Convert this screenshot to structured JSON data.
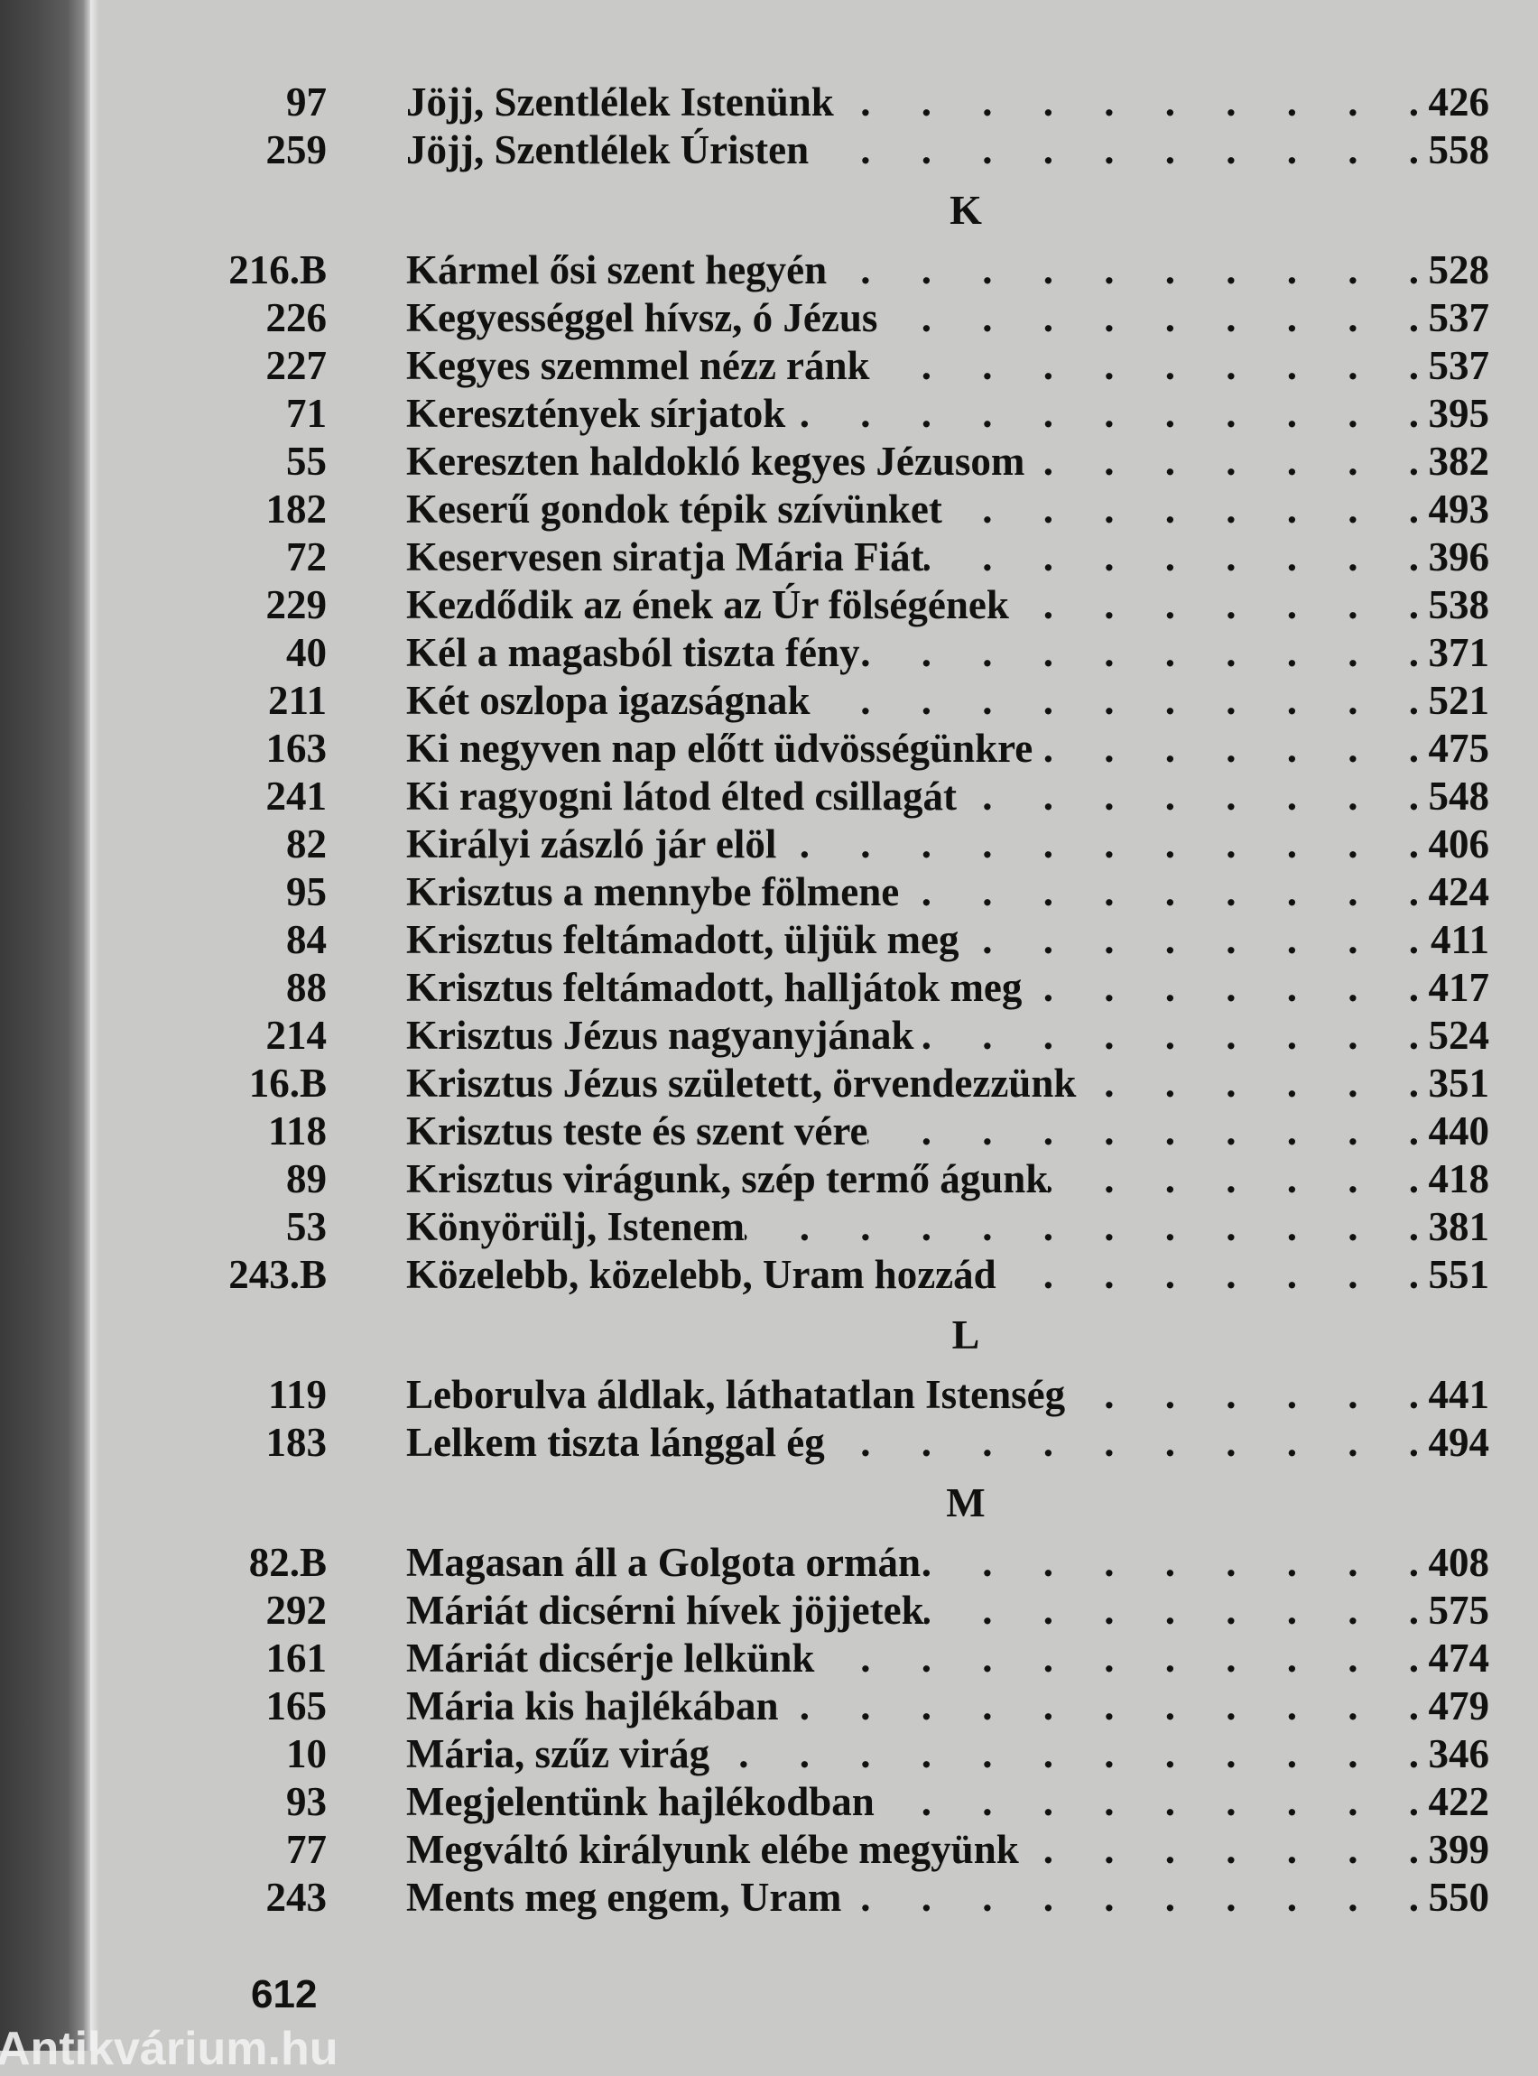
{
  "sections": [
    {
      "letter": "",
      "entries": [
        {
          "num": "97",
          "title": "Jöjj, Szentlélek Istenünk",
          "page": "426"
        },
        {
          "num": "259",
          "title": "Jöjj, Szentlélek Úristen",
          "page": "558"
        }
      ]
    },
    {
      "letter": "K",
      "entries": [
        {
          "num": "216.B",
          "title": "Kármel ősi szent hegyén",
          "page": "528"
        },
        {
          "num": "226",
          "title": "Kegyességgel hívsz, ó Jézus",
          "page": "537"
        },
        {
          "num": "227",
          "title": "Kegyes szemmel nézz ránk",
          "page": "537"
        },
        {
          "num": "71",
          "title": "Keresztények sírjatok",
          "page": "395"
        },
        {
          "num": "55",
          "title": "Kereszten haldokló kegyes Jézusom",
          "page": "382"
        },
        {
          "num": "182",
          "title": "Keserű gondok tépik szívünket",
          "page": "493"
        },
        {
          "num": "72",
          "title": "Keservesen siratja Mária Fiát",
          "page": "396"
        },
        {
          "num": "229",
          "title": "Kezdődik az ének az Úr fölségének",
          "page": "538"
        },
        {
          "num": "40",
          "title": "Kél a magasból tiszta fény",
          "page": "371"
        },
        {
          "num": "211",
          "title": "Két oszlopa igazságnak",
          "page": "521"
        },
        {
          "num": "163",
          "title": "Ki negyven nap előtt üdvösségünkre",
          "page": "475"
        },
        {
          "num": "241",
          "title": "Ki ragyogni látod élted csillagát",
          "page": "548"
        },
        {
          "num": "82",
          "title": "Királyi zászló jár elöl",
          "page": "406"
        },
        {
          "num": "95",
          "title": "Krisztus a mennybe fölmene",
          "page": "424"
        },
        {
          "num": "84",
          "title": "Krisztus feltámadott, üljük meg",
          "page": "411"
        },
        {
          "num": "88",
          "title": "Krisztus feltámadott, halljátok meg",
          "page": "417"
        },
        {
          "num": "214",
          "title": "Krisztus Jézus nagyanyjának",
          "page": "524"
        },
        {
          "num": "16.B",
          "title": "Krisztus Jézus született, örvendezzünk",
          "page": "351"
        },
        {
          "num": "118",
          "title": "Krisztus teste és szent vére",
          "page": "440"
        },
        {
          "num": "89",
          "title": "Krisztus virágunk, szép termő águnk",
          "page": "418"
        },
        {
          "num": "53",
          "title": "Könyörülj, Istenem",
          "page": "381"
        },
        {
          "num": "243.B",
          "title": "Közelebb, közelebb, Uram hozzád",
          "page": "551"
        }
      ]
    },
    {
      "letter": "L",
      "entries": [
        {
          "num": "119",
          "title": "Leborulva áldlak, láthatatlan Istenség",
          "page": "441"
        },
        {
          "num": "183",
          "title": "Lelkem tiszta lánggal ég",
          "page": "494"
        }
      ]
    },
    {
      "letter": "M",
      "entries": [
        {
          "num": "82.B",
          "title": "Magasan áll a Golgota ormán",
          "page": "408"
        },
        {
          "num": "292",
          "title": "Máriát dicsérni hívek jöjjetek",
          "page": "575"
        },
        {
          "num": "161",
          "title": "Máriát dicsérje lelkünk",
          "page": "474"
        },
        {
          "num": "165",
          "title": "Mária kis hajlékában",
          "page": "479"
        },
        {
          "num": "10",
          "title": "Mária, szűz virág",
          "page": "346"
        },
        {
          "num": "93",
          "title": "Megjelentünk hajlékodban",
          "page": "422"
        },
        {
          "num": "77",
          "title": "Megváltó királyunk elébe megyünk",
          "page": "399"
        },
        {
          "num": "243",
          "title": "Ments meg engem, Uram",
          "page": "550"
        }
      ]
    }
  ],
  "folio": "612",
  "watermark": "Antikvárium.hu"
}
